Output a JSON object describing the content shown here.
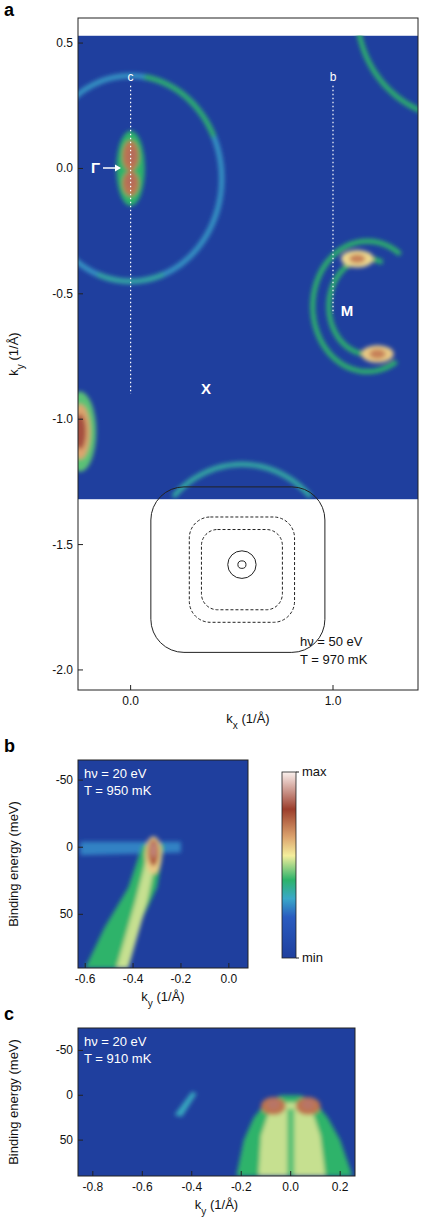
{
  "chart_data": [
    {
      "type": "heatmap",
      "panel_label": "a",
      "xlabel": {
        "main": "k",
        "sub": "x",
        "rest": " (1/Å)"
      },
      "ylabel": {
        "main": "k",
        "sub": "y",
        "rest": " (1/Å)"
      },
      "xlim": [
        -0.26,
        1.42
      ],
      "ylim": [
        -2.08,
        0.6
      ],
      "xticks": [
        {
          "value": 0,
          "label": "0.0"
        },
        {
          "value": 1,
          "label": "1.0"
        }
      ],
      "yticks": [
        0.5,
        {
          "value": 0,
          "label": "0.0"
        },
        -0.5,
        {
          "value": -1,
          "label": "-1.0"
        },
        -1.5,
        {
          "value": -2,
          "label": "-2.0"
        }
      ],
      "map_extent": {
        "x": [
          -0.26,
          1.42
        ],
        "y": [
          -1.32,
          0.53
        ]
      },
      "background_intensity": 0,
      "annotations": [
        "hν = 50 eV",
        "T = 970 mK"
      ],
      "point_labels": [
        "Γ",
        "X",
        "M"
      ],
      "cuts": [
        {
          "label": "c",
          "x": 0,
          "y": [
            0.33,
            -0.9
          ]
        },
        {
          "label": "b",
          "x": 1,
          "y": [
            0.33,
            -0.58
          ]
        }
      ],
      "features": [
        {
          "shape": "arc",
          "x": 0,
          "y": -0.04,
          "rx": 0.45,
          "ry": 0.41,
          "from": 0,
          "to": 360,
          "intensity": 0.3
        },
        {
          "shape": "arc",
          "x": 0,
          "y": -0.04,
          "rx": 0.45,
          "ry": 0.41,
          "from": 25,
          "to": 80,
          "intensity": 0.42
        },
        {
          "shape": "arc",
          "x": 0,
          "y": -0.04,
          "rx": 0.45,
          "ry": 0.41,
          "from": 250,
          "to": 290,
          "intensity": 0.36
        },
        {
          "shape": "ellipse",
          "x": 0,
          "y": 0,
          "rx": 0.07,
          "ry": 0.15,
          "intensity": 0.42
        },
        {
          "shape": "ellipse",
          "x": 0,
          "y": 0.05,
          "rx": 0.04,
          "ry": 0.06,
          "intensity": 0.72
        },
        {
          "shape": "ellipse",
          "x": 0,
          "y": -0.06,
          "rx": 0.04,
          "ry": 0.05,
          "intensity": 0.72
        },
        {
          "shape": "ellipse",
          "x": 0.005,
          "y": 0.05,
          "rx": 0.02,
          "ry": 0.035,
          "intensity": 0.85
        },
        {
          "shape": "ellipse",
          "x": 0,
          "y": -0.05,
          "rx": 0.02,
          "ry": 0.03,
          "intensity": 0.85
        },
        {
          "shape": "arc",
          "x": 1.17,
          "y": -0.55,
          "rx": 0.27,
          "ry": 0.26,
          "from": 55,
          "to": 300,
          "intensity": 0.42
        },
        {
          "shape": "arc",
          "x": 1.17,
          "y": -0.55,
          "rx": 0.19,
          "ry": 0.19,
          "from": 70,
          "to": 290,
          "intensity": 0.42
        },
        {
          "shape": "ellipse",
          "x": 1.12,
          "y": -0.36,
          "rx": 0.08,
          "ry": 0.035,
          "intensity": 0.58
        },
        {
          "shape": "ellipse",
          "x": 1.22,
          "y": -0.74,
          "rx": 0.08,
          "ry": 0.035,
          "intensity": 0.6
        },
        {
          "shape": "ellipse",
          "x": 1.12,
          "y": -0.36,
          "rx": 0.04,
          "ry": 0.018,
          "intensity": 0.7
        },
        {
          "shape": "ellipse",
          "x": 1.22,
          "y": -0.74,
          "rx": 0.04,
          "ry": 0.02,
          "intensity": 0.7
        },
        {
          "shape": "arc",
          "x": 1.62,
          "y": 0.62,
          "rx": 0.5,
          "ry": 0.42,
          "from": 190,
          "to": 255,
          "intensity": 0.42
        },
        {
          "shape": "arc",
          "x": 0.55,
          "y": -1.6,
          "rx": 0.47,
          "ry": 0.42,
          "from": 45,
          "to": 135,
          "intensity": 0.36
        },
        {
          "shape": "ellipse",
          "x": -0.25,
          "y": -1.05,
          "rx": 0.08,
          "ry": 0.16,
          "intensity": 0.45
        },
        {
          "shape": "ellipse",
          "x": -0.25,
          "y": -1.05,
          "rx": 0.05,
          "ry": 0.11,
          "intensity": 0.65
        },
        {
          "shape": "ellipse",
          "x": -0.25,
          "y": -1.05,
          "rx": 0.03,
          "ry": 0.07,
          "intensity": 0.82
        }
      ],
      "schematic": [
        {
          "shape": "ellipse",
          "x": 0.55,
          "y": -1.58,
          "rx": 0.02,
          "ry": 0.015,
          "line_style": "solid"
        },
        {
          "shape": "ellipse",
          "x": 0.55,
          "y": -1.58,
          "rx": 0.07,
          "ry": 0.055,
          "line_style": "solid"
        },
        {
          "shape": "rect",
          "x": 0.55,
          "y": -1.6,
          "rx": 0.2,
          "ry": 0.16,
          "line_style": "dashed"
        },
        {
          "shape": "rect",
          "x": 0.55,
          "y": -1.6,
          "rx": 0.26,
          "ry": 0.21,
          "line_style": "dashed"
        },
        {
          "shape": "rect",
          "x": 0.53,
          "y": -1.6,
          "rx": 0.43,
          "ry": 0.33,
          "line_style": "solid"
        }
      ]
    },
    {
      "type": "heatmap",
      "panel_label": "b",
      "xlabel": {
        "main": "k",
        "sub": "y",
        "rest": " (1/Å)"
      },
      "ylabel": {
        "main": "Binding energy (meV)"
      },
      "xlim": [
        -0.63,
        0.08
      ],
      "ylim": [
        90,
        -65
      ],
      "xticks": [
        -0.6,
        -0.4,
        -0.2,
        {
          "value": 0,
          "label": "0.0"
        }
      ],
      "yticks": [
        -50,
        0,
        50
      ],
      "map_extent": {
        "x": [
          -0.63,
          0.08
        ],
        "y": [
          90,
          -65
        ]
      },
      "background_intensity": 0,
      "annotations": [
        "hν = 20 eV",
        "T = 950 mK"
      ],
      "features": [
        {
          "shape": "polygon",
          "x": [
            -0.62,
            -0.2,
            -0.2,
            -0.62
          ],
          "y": [
            -4,
            -4,
            4,
            6
          ],
          "intensity": 0.27
        },
        {
          "shape": "polygon",
          "x": [
            -0.36,
            -0.27,
            -0.3,
            -0.38,
            -0.43,
            -0.6,
            -0.52,
            -0.42
          ],
          "y": [
            -2,
            -2,
            30,
            60,
            90,
            90,
            60,
            30
          ],
          "intensity": 0.42
        },
        {
          "shape": "polygon",
          "x": [
            -0.34,
            -0.3,
            -0.34,
            -0.42,
            -0.47,
            -0.39
          ],
          "y": [
            5,
            5,
            40,
            90,
            90,
            40
          ],
          "intensity": 0.52
        },
        {
          "shape": "ellipse",
          "x": -0.315,
          "y": 6,
          "rx": 0.035,
          "ry": 14,
          "intensity": 0.6
        },
        {
          "shape": "ellipse",
          "x": -0.315,
          "y": 4,
          "rx": 0.022,
          "ry": 10,
          "intensity": 0.75
        },
        {
          "shape": "ellipse",
          "x": -0.315,
          "y": 2,
          "rx": 0.012,
          "ry": 6,
          "intensity": 0.88
        }
      ],
      "colorbar": {
        "range": [
          0,
          1
        ],
        "ticks": [
          {
            "value": 1,
            "label": "max"
          },
          {
            "value": 0,
            "label": "min"
          }
        ],
        "colormap": {
          "stops": [
            0,
            0.22,
            0.32,
            0.42,
            0.55,
            0.65,
            0.8,
            1
          ],
          "colors": [
            "#1f3f9e",
            "#2a5cc0",
            "#3aa8c8",
            "#2db36a",
            "#f4ee9c",
            "#dca46e",
            "#9c3e2c",
            "#fbf1ee"
          ]
        }
      }
    },
    {
      "type": "heatmap",
      "panel_label": "c",
      "xlabel": {
        "main": "k",
        "sub": "y",
        "rest": " (1/Å)"
      },
      "ylabel": {
        "main": "Binding energy (meV)"
      },
      "xlim": [
        -0.86,
        0.26
      ],
      "ylim": [
        90,
        -75
      ],
      "xticks": [
        -0.8,
        -0.6,
        -0.4,
        -0.2,
        {
          "value": 0,
          "label": "0.0"
        },
        0.2
      ],
      "yticks": [
        -50,
        0,
        50
      ],
      "map_extent": {
        "x": [
          -0.86,
          0.26
        ],
        "y": [
          90,
          -75
        ]
      },
      "background_intensity": 0,
      "annotations": [
        "hν = 20 eV",
        "T = 910 mK"
      ],
      "features": [
        {
          "shape": "polygon",
          "x": [
            -0.47,
            -0.44,
            -0.38,
            -0.4
          ],
          "y": [
            22,
            24,
            -2,
            -4
          ],
          "intensity": 0.33
        },
        {
          "shape": "polygon",
          "x": [
            -0.22,
            -0.19,
            -0.15,
            -0.1,
            -0.04,
            0.04,
            0.1,
            0.15,
            0.2,
            0.25
          ],
          "y": [
            90,
            50,
            25,
            8,
            0,
            0,
            8,
            25,
            50,
            90
          ],
          "intensity": 0.42
        },
        {
          "shape": "polygon",
          "x": [
            -0.13,
            -0.12,
            -0.09,
            -0.03,
            0.03,
            0.09,
            0.12,
            0.14
          ],
          "y": [
            90,
            45,
            20,
            8,
            8,
            20,
            45,
            90
          ],
          "intensity": 0.52
        },
        {
          "shape": "polygon",
          "x": [
            -0.015,
            0.015,
            0.015,
            -0.015
          ],
          "y": [
            15,
            15,
            90,
            90
          ],
          "intensity": 0.45
        },
        {
          "shape": "ellipse",
          "x": -0.07,
          "y": 12,
          "rx": 0.05,
          "ry": 10,
          "intensity": 0.72
        },
        {
          "shape": "ellipse",
          "x": 0.07,
          "y": 12,
          "rx": 0.05,
          "ry": 10,
          "intensity": 0.72
        },
        {
          "shape": "ellipse",
          "x": -0.07,
          "y": 10,
          "rx": 0.025,
          "ry": 6,
          "intensity": 0.86
        },
        {
          "shape": "ellipse",
          "x": 0.07,
          "y": 10,
          "rx": 0.025,
          "ry": 6,
          "intensity": 0.86
        }
      ]
    }
  ]
}
